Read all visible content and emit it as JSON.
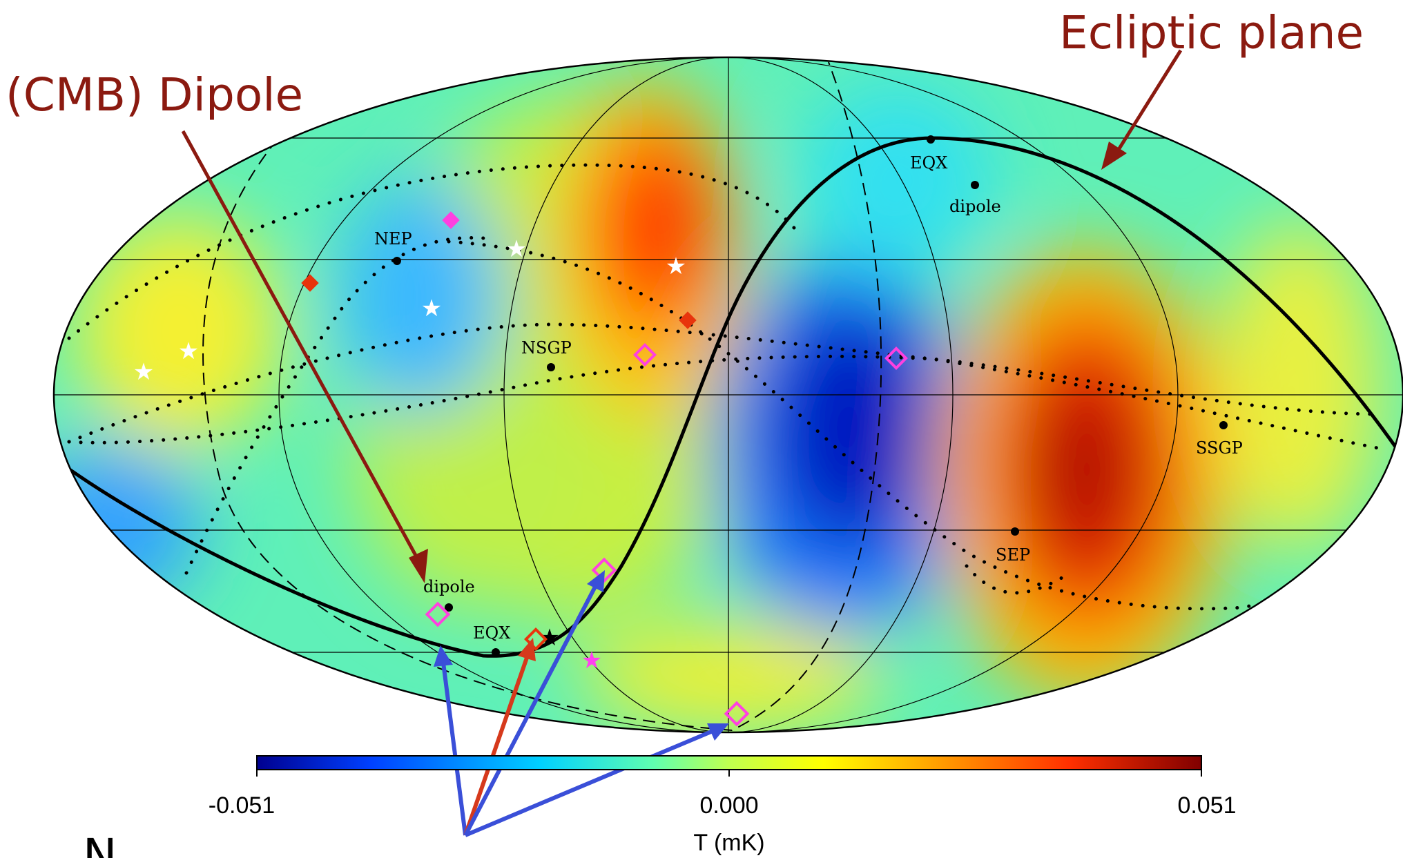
{
  "annotations": {
    "dipole_callout": "(CMB) Dipole",
    "ecliptic_callout": "Ecliptic plane",
    "bottom_caption": "N",
    "colors": {
      "callout": "#8b1a10",
      "arrow_blue": "#3a4fd8",
      "arrow_red": "#d6391c"
    }
  },
  "map_labels": {
    "nep": "NEP",
    "nsgp": "NSGP",
    "eqx_north": "EQX",
    "dipole_north": "dipole",
    "ssgp": "SSGP",
    "sep": "SEP",
    "dipole_south": "dipole",
    "eqx_south": "EQX"
  },
  "colorbar": {
    "min_label": "-0.051",
    "mid_label": "0.000",
    "max_label": "0.051",
    "axis_label": "T (mK)",
    "min_value": -0.051,
    "max_value": 0.051,
    "colormap": [
      "#00008f",
      "#0040ff",
      "#00c0ff",
      "#40ffbf",
      "#c8ff40",
      "#ffff00",
      "#ffa000",
      "#ff3000",
      "#800000"
    ]
  }
}
